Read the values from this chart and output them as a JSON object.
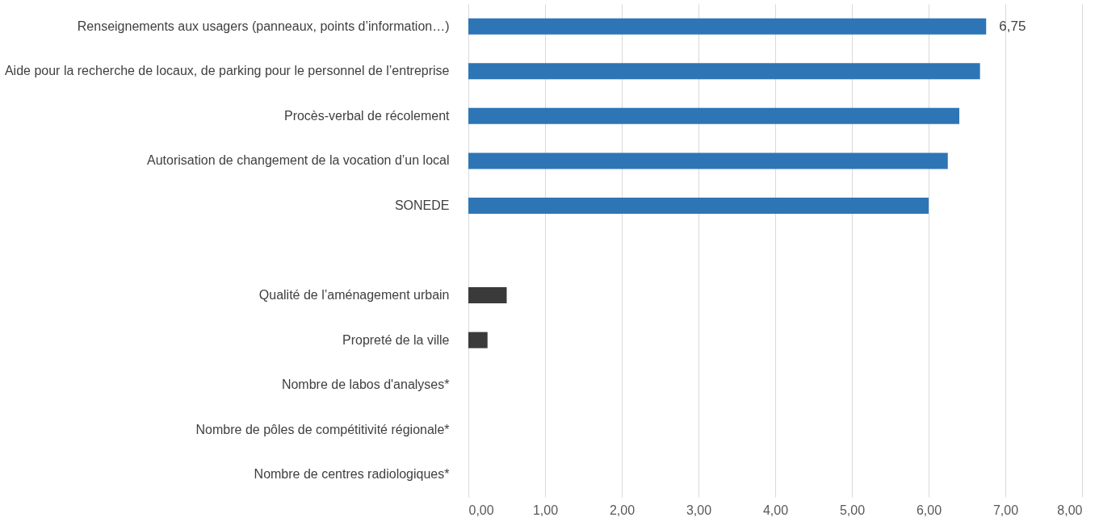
{
  "chart_data": {
    "type": "bar",
    "orientation": "horizontal",
    "categories": [
      "Renseignements aux usagers (panneaux, points d’information…)",
      "Aide pour la recherche de locaux, de parking pour le personnel de l’entreprise",
      "Procès-verbal de récolement",
      "Autorisation de changement de la vocation d’un local",
      "SONEDE",
      null,
      "Qualité de l’aménagement urbain",
      "Propreté de la ville",
      "Nombre de labos d'analyses*",
      "Nombre de pôles de compétitivité régionale*",
      "Nombre de centres radiologiques*"
    ],
    "values": [
      6.75,
      6.67,
      6.4,
      6.25,
      6.0,
      null,
      0.5,
      0.25,
      0,
      0,
      0
    ],
    "colors": [
      "#2e75b6",
      "#2e75b6",
      "#2e75b6",
      "#2e75b6",
      "#2e75b6",
      null,
      "#3a3a3a",
      "#3a3a3a",
      "#3a3a3a",
      "#3a3a3a",
      "#3a3a3a"
    ],
    "value_labels": [
      "6,75",
      null,
      null,
      null,
      null,
      null,
      null,
      null,
      null,
      null,
      null
    ],
    "xlim": [
      0,
      8
    ],
    "xticks": [
      {
        "value": 0,
        "label": "0,00"
      },
      {
        "value": 1,
        "label": "1,00"
      },
      {
        "value": 2,
        "label": "2,00"
      },
      {
        "value": 3,
        "label": "3,00"
      },
      {
        "value": 4,
        "label": "4,00"
      },
      {
        "value": 5,
        "label": "5,00"
      },
      {
        "value": 6,
        "label": "6,00"
      },
      {
        "value": 7,
        "label": "7,00"
      },
      {
        "value": 8,
        "label": "8,00"
      }
    ],
    "grid": "x"
  }
}
